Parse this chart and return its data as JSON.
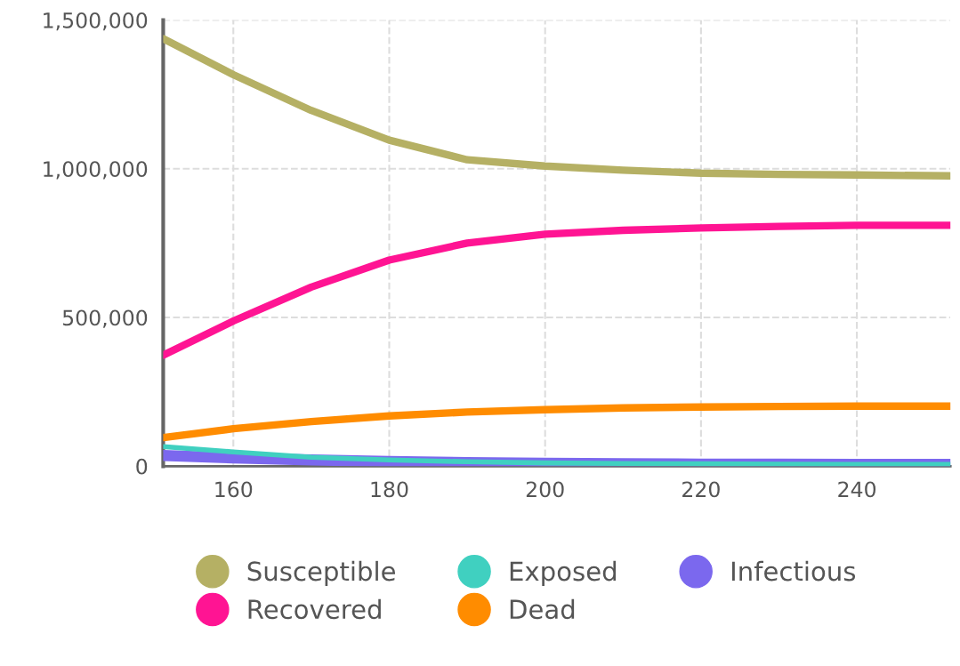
{
  "chart_data": {
    "type": "line",
    "x": [
      151,
      160,
      170,
      180,
      190,
      200,
      210,
      220,
      230,
      240,
      252
    ],
    "series": [
      {
        "name": "Susceptible",
        "color": "#b5b064",
        "values": [
          1437000,
          1316000,
          1196000,
          1096000,
          1030000,
          1009000,
          995000,
          985000,
          981000,
          979000,
          976000
        ]
      },
      {
        "name": "Exposed",
        "color": "#40d0c0",
        "values": [
          66000,
          48000,
          30000,
          21000,
          15000,
          11000,
          9000,
          8000,
          7000,
          6000,
          6000
        ]
      },
      {
        "name": "Infectious",
        "color": "#7b68ee",
        "values": [
          36000,
          28000,
          21000,
          16000,
          12000,
          10000,
          8000,
          7000,
          7000,
          6000,
          6000
        ]
      },
      {
        "name": "Recovered",
        "color": "#ff1493",
        "values": [
          373000,
          488000,
          602000,
          693000,
          750000,
          780000,
          793000,
          801000,
          806000,
          810000,
          810000
        ]
      },
      {
        "name": "Dead",
        "color": "#ff8c00",
        "values": [
          96000,
          126000,
          150000,
          169000,
          182000,
          190000,
          196000,
          199000,
          201000,
          202000,
          202000
        ]
      }
    ],
    "xlim": [
      151,
      252
    ],
    "xticks": [
      160,
      180,
      200,
      220,
      240
    ],
    "ylim": [
      0,
      1500000
    ],
    "yticks": [
      {
        "value": 0,
        "label": "0"
      },
      {
        "value": 500000,
        "label": "500,000"
      },
      {
        "value": 1000000,
        "label": "1,000,000"
      },
      {
        "value": 1500000,
        "label": "1,500,000"
      }
    ],
    "grid": true,
    "legend": "bottom",
    "line_style": "solid"
  }
}
